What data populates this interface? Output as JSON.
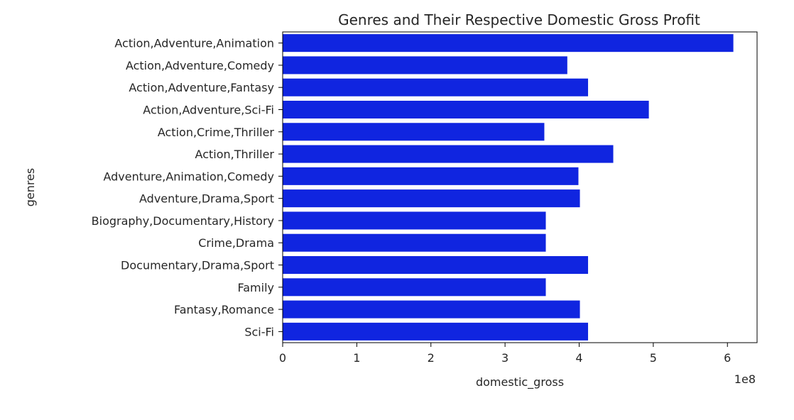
{
  "chart_data": {
    "type": "bar",
    "orientation": "horizontal",
    "title": "Genres and Their Respective Domestic Gross Profit",
    "xlabel": "domestic_gross",
    "ylabel": "genres",
    "x_offset_text": "1e8",
    "bar_color": "#1025e0",
    "grid": false,
    "xlim": [
      0,
      6.4
    ],
    "xticks": [
      0,
      1,
      2,
      3,
      4,
      5,
      6
    ],
    "categories": [
      "Action,Adventure,Animation",
      "Action,Adventure,Comedy",
      "Action,Adventure,Fantasy",
      "Action,Adventure,Sci-Fi",
      "Action,Crime,Thriller",
      "Action,Thriller",
      "Adventure,Animation,Comedy",
      "Adventure,Drama,Sport",
      "Biography,Documentary,History",
      "Crime,Drama",
      "Documentary,Drama,Sport",
      "Family",
      "Fantasy,Romance",
      "Sci-Fi"
    ],
    "values": [
      6.08,
      3.84,
      4.12,
      4.94,
      3.53,
      4.46,
      3.99,
      4.01,
      3.55,
      3.55,
      4.12,
      3.55,
      4.01,
      4.12
    ]
  }
}
